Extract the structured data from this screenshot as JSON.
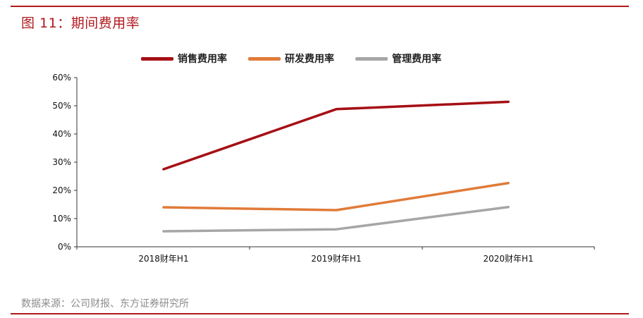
{
  "figure_title": "图 11：期间费用率",
  "source_note": "数据来源：公司财报、东方证券研究所",
  "colors": {
    "rule": "#b0191e",
    "title": "#b0191e"
  },
  "chart_data": {
    "type": "line",
    "categories": [
      "2018财年H1",
      "2019财年H1",
      "2020财年H1"
    ],
    "ylim": [
      0,
      0.6
    ],
    "y_ticks": [
      0,
      0.1,
      0.2,
      0.3,
      0.4,
      0.5,
      0.6
    ],
    "y_tick_labels": [
      "0%",
      "10%",
      "20%",
      "30%",
      "40%",
      "50%",
      "60%"
    ],
    "grid": false,
    "legend_position": "top",
    "series": [
      {
        "name": "销售费用率",
        "color": "#a50f15",
        "values": [
          0.275,
          0.488,
          0.514
        ]
      },
      {
        "name": "研发费用率",
        "color": "#e07b39",
        "values": [
          0.14,
          0.13,
          0.226
        ]
      },
      {
        "name": "管理费用率",
        "color": "#a6a6a6",
        "values": [
          0.055,
          0.062,
          0.141
        ]
      }
    ]
  }
}
